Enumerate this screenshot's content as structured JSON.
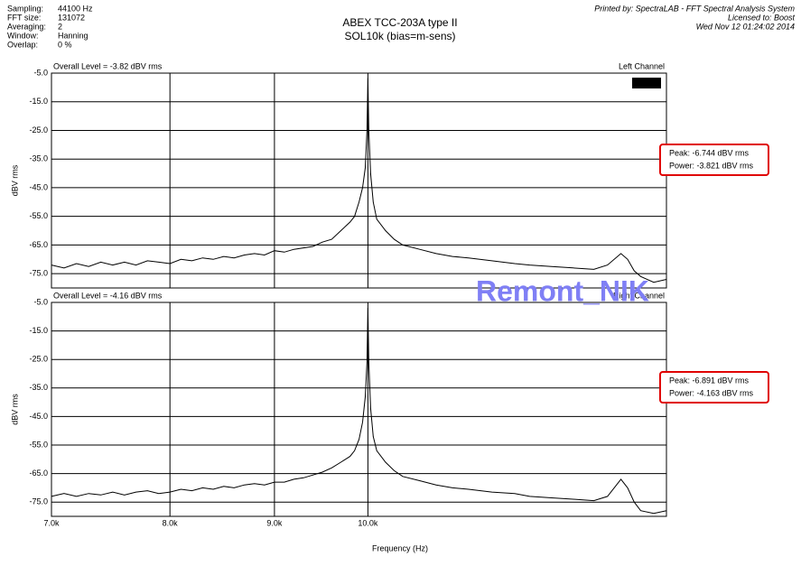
{
  "header": {
    "settings": [
      [
        "Sampling:",
        "44100 Hz"
      ],
      [
        "FFT size:",
        "131072"
      ],
      [
        "Averaging:",
        "2"
      ],
      [
        "Window:",
        "Hanning"
      ],
      [
        "Overlap:",
        "0 %"
      ]
    ],
    "printed_by": [
      "Printed by: SpectraLAB - FFT Spectral Analysis System",
      "Licensed to: Boost",
      "Wed Nov 12 01:24:02 2014"
    ]
  },
  "title": [
    "ABEX TCC-203A type II",
    "SOL10k (bias=m-sens)"
  ],
  "watermark": "Remont_NIK",
  "chart_data": [
    {
      "type": "line",
      "overall": "Overall Level = -3.82 dBV rms",
      "channel": "Left Channel",
      "readout": [
        "Peak: -6.744 dBV rms",
        "Power: -3.821 dBV rms"
      ],
      "y_label": "dBV rms",
      "xscale": "log",
      "grid": true,
      "xlim": [
        7000,
        14000
      ],
      "xticks": [
        8000,
        9000,
        10000
      ],
      "ylim": [
        -80,
        -5
      ],
      "yticks": [
        {
          "value": -5,
          "label": "-5.0"
        },
        {
          "value": -15,
          "label": "-15.0"
        },
        {
          "value": -25,
          "label": "-25.0"
        },
        {
          "value": -35,
          "label": "-35.0"
        },
        {
          "value": -45,
          "label": "-45.0"
        },
        {
          "value": -55,
          "label": "-55.0"
        },
        {
          "value": -65,
          "label": "-65.0"
        },
        {
          "value": -75,
          "label": "-75.0"
        }
      ],
      "x": [
        7000,
        7100,
        7200,
        7300,
        7400,
        7500,
        7600,
        7700,
        7800,
        7900,
        8000,
        8100,
        8200,
        8300,
        8400,
        8500,
        8600,
        8700,
        8800,
        8900,
        9000,
        9100,
        9200,
        9300,
        9400,
        9500,
        9600,
        9700,
        9800,
        9850,
        9900,
        9940,
        9970,
        9990,
        10000,
        10010,
        10030,
        10060,
        10100,
        10200,
        10300,
        10400,
        10600,
        10800,
        11000,
        11200,
        11500,
        11800,
        12000,
        12300,
        12600,
        12900,
        13100,
        13300,
        13400,
        13500,
        13600,
        13800,
        14000
      ],
      "series": [
        {
          "color": "#000000",
          "values": [
            -72,
            -73,
            -71.5,
            -72.5,
            -71,
            -72,
            -71,
            -72,
            -70.5,
            -71,
            -71.5,
            -70,
            -70.5,
            -69.5,
            -70,
            -69,
            -69.5,
            -68.5,
            -68,
            -68.5,
            -67,
            -67.5,
            -66.5,
            -66,
            -65.5,
            -64,
            -63,
            -60,
            -57,
            -55,
            -50,
            -45,
            -38,
            -25,
            -6.7,
            -25,
            -40,
            -50,
            -56,
            -60,
            -63,
            -65,
            -66.5,
            -68,
            -69,
            -69.5,
            -70.5,
            -71.5,
            -72,
            -72.5,
            -73,
            -73.5,
            -72,
            -68,
            -70,
            -74,
            -76,
            -78,
            -77
          ]
        }
      ]
    },
    {
      "type": "line",
      "overall": "Overall Level = -4.16 dBV rms",
      "channel": "Right Channel",
      "readout": [
        "Peak: -6.891 dBV rms",
        "Power: -4.163 dBV rms"
      ],
      "y_label": "dBV rms",
      "x_label": "Frequency (Hz)",
      "xscale": "log",
      "grid": true,
      "xlim": [
        7000,
        14000
      ],
      "xticks": [
        {
          "value": 7000,
          "label": "7.0k"
        },
        {
          "value": 8000,
          "label": "8.0k"
        },
        {
          "value": 9000,
          "label": "9.0k"
        },
        {
          "value": 10000,
          "label": "10.0k"
        }
      ],
      "ylim": [
        -80,
        -5
      ],
      "yticks": [
        {
          "value": -5,
          "label": "-5.0"
        },
        {
          "value": -15,
          "label": "-15.0"
        },
        {
          "value": -25,
          "label": "-25.0"
        },
        {
          "value": -35,
          "label": "-35.0"
        },
        {
          "value": -45,
          "label": "-45.0"
        },
        {
          "value": -55,
          "label": "-55.0"
        },
        {
          "value": -65,
          "label": "-65.0"
        },
        {
          "value": -75,
          "label": "-75.0"
        }
      ],
      "x": [
        7000,
        7100,
        7200,
        7300,
        7400,
        7500,
        7600,
        7700,
        7800,
        7900,
        8000,
        8100,
        8200,
        8300,
        8400,
        8500,
        8600,
        8700,
        8800,
        8900,
        9000,
        9100,
        9200,
        9300,
        9400,
        9500,
        9600,
        9700,
        9800,
        9850,
        9900,
        9940,
        9970,
        9990,
        10000,
        10010,
        10030,
        10060,
        10100,
        10200,
        10300,
        10400,
        10600,
        10800,
        11000,
        11200,
        11500,
        11800,
        12000,
        12300,
        12600,
        12900,
        13100,
        13300,
        13400,
        13500,
        13600,
        13800,
        14000
      ],
      "series": [
        {
          "color": "#000000",
          "values": [
            -73,
            -72,
            -73,
            -72,
            -72.5,
            -71.5,
            -72.5,
            -71.5,
            -71,
            -72,
            -71.5,
            -70.5,
            -71,
            -70,
            -70.5,
            -69.5,
            -70,
            -69,
            -68.5,
            -69,
            -68,
            -68,
            -67,
            -66.5,
            -65.5,
            -64.5,
            -63,
            -61,
            -59,
            -57,
            -53,
            -47,
            -38,
            -26,
            -6.9,
            -26,
            -42,
            -52,
            -57,
            -61,
            -64,
            -66,
            -67.5,
            -69,
            -70,
            -70.5,
            -71.5,
            -72,
            -73,
            -73.5,
            -74,
            -74.5,
            -73,
            -67,
            -70,
            -75,
            -78,
            -79,
            -78
          ]
        }
      ]
    }
  ]
}
